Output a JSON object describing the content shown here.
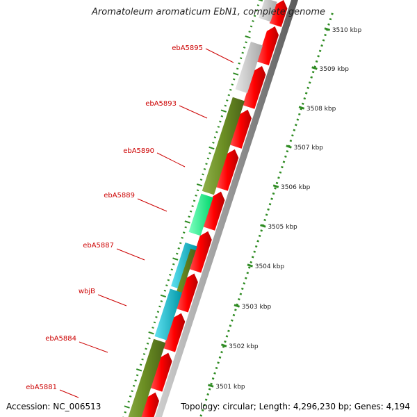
{
  "title": "Aromatoleum aromaticum EbN1, complete genome",
  "footer": {
    "accession": "Accession: NC_006513",
    "topology": "Topology: circular; Length: 4,296,230 bp; Genes: 4,194"
  },
  "colors": {
    "forward_cds": "#ff0000",
    "olive_gene": "#6b8e23",
    "grey_gene": "#c8c8c8",
    "spring_green_gene": "#00ff7f",
    "cyan_gene": "#00bcd4",
    "label": "#cc0000",
    "ticks": "#2e8b22",
    "backbone": "#8c8c8c"
  },
  "scale": {
    "ticks": [
      {
        "label": "3510 kbp",
        "kbp": 3510
      },
      {
        "label": "3509 kbp",
        "kbp": 3509
      },
      {
        "label": "3508 kbp",
        "kbp": 3508
      },
      {
        "label": "3507 kbp",
        "kbp": 3507
      },
      {
        "label": "3506 kbp",
        "kbp": 3506
      },
      {
        "label": "3505 kbp",
        "kbp": 3505
      },
      {
        "label": "3504 kbp",
        "kbp": 3504
      },
      {
        "label": "3503 kbp",
        "kbp": 3503
      },
      {
        "label": "3502 kbp",
        "kbp": 3502
      },
      {
        "label": "3501 kbp",
        "kbp": 3501
      }
    ]
  },
  "gene_labels": [
    "ebA5895",
    "ebA5893",
    "ebA5890",
    "ebA5889",
    "ebA5887",
    "wbjB",
    "ebA5884",
    "ebA5881"
  ]
}
